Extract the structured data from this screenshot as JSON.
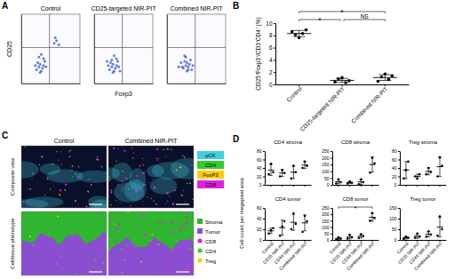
{
  "chart_data": [
    {
      "type": "scatter",
      "title": "Control",
      "x": [
        1.3,
        1.5,
        1.7,
        1.9,
        1.4,
        1.6,
        1.8,
        2.0,
        1.2,
        1.6,
        1.9,
        1.5,
        2.1,
        1.7,
        2.8,
        3.0,
        3.2,
        2.9
      ],
      "values": [
        1.0,
        1.2,
        0.9,
        1.3,
        1.5,
        1.4,
        1.1,
        1.6,
        1.3,
        0.8,
        1.8,
        1.9,
        1.2,
        2.1,
        2.9,
        3.1,
        2.8,
        3.3
      ],
      "xlim": [
        0,
        5
      ],
      "ylim": [
        0,
        5
      ],
      "gates": {
        "x": 2.4,
        "y": 2.6
      },
      "color": "#3050d0",
      "tick_labels": false
    },
    {
      "type": "scatter",
      "title": "CD25-targeted NIR-PIT",
      "x": [
        1.3,
        1.5,
        1.7,
        1.9,
        1.4,
        1.6,
        1.8,
        2.0,
        1.2,
        1.6,
        1.9,
        1.5,
        2.1,
        1.7,
        2.2,
        1.1
      ],
      "values": [
        1.0,
        1.2,
        0.9,
        1.3,
        1.5,
        1.4,
        1.1,
        1.6,
        1.3,
        0.8,
        1.8,
        1.7,
        1.2,
        2.0,
        0.9,
        1.6
      ],
      "xlim": [
        0,
        5
      ],
      "ylim": [
        0,
        5
      ],
      "gates": {
        "x": 2.4,
        "y": 2.6
      },
      "color": "#3050d0",
      "tick_labels": false
    },
    {
      "type": "scatter",
      "title": "Combined NIR-PIT",
      "x": [
        1.4,
        1.6,
        1.8,
        1.5,
        1.3,
        1.7,
        1.9,
        2.0,
        1.2,
        1.6,
        1.8,
        1.5,
        2.1,
        1.7,
        2.2,
        1.0
      ],
      "values": [
        1.1,
        1.3,
        1.0,
        1.6,
        1.2,
        0.9,
        1.4,
        1.7,
        1.5,
        1.9,
        1.2,
        2.0,
        1.0,
        1.5,
        1.3,
        1.2
      ],
      "xlim": [
        0,
        5
      ],
      "ylim": [
        0,
        5
      ],
      "gates": {
        "x": 2.4,
        "y": 2.6
      },
      "color": "#3050d0",
      "tick_labels": false
    },
    {
      "type": "dot",
      "y_label": "CD25⁺Foxp3⁺/CD3⁺CD4⁺ (%)",
      "categories": [
        "Control",
        "CD25-targeted NIR-PIT",
        "Combined NIR-PIT"
      ],
      "values": [
        [
          8.6,
          8.1,
          7.6,
          8.3,
          8.9
        ],
        [
          0.4,
          0.9,
          1.1,
          0.3,
          0.6
        ],
        [
          0.5,
          1.2,
          1.7,
          0.8,
          1.4
        ]
      ],
      "means": [
        8.3,
        0.66,
        1.12
      ],
      "errors": [
        0.5,
        0.33,
        0.47
      ],
      "ylim": [
        0,
        10
      ],
      "yticks": [
        0,
        2,
        4,
        6,
        8,
        10
      ],
      "color": "#000000",
      "annotations": [
        {
          "from": 0,
          "to": 1,
          "label": "*"
        },
        {
          "from": 1,
          "to": 2,
          "label": "NS"
        },
        {
          "from": 0,
          "to": 2,
          "label": "*"
        }
      ]
    },
    {
      "type": "dot",
      "title": "CD4 stroma",
      "categories": [
        "Control",
        "CD25 NIR-PIT",
        "CD44 NIR-PIT",
        "Combined NIR-PIT"
      ],
      "values": [
        [
          25,
          50,
          30
        ],
        [
          20,
          35,
          28
        ],
        [
          15,
          45,
          30
        ],
        [
          40,
          55,
          45
        ]
      ],
      "means": [
        35,
        28,
        30,
        47
      ],
      "errors": [
        13,
        8,
        15,
        8
      ],
      "ylim": [
        0,
        80
      ],
      "yticks": [
        0,
        20,
        40,
        60,
        80
      ],
      "color": "#000000",
      "tick_labels": "y"
    },
    {
      "type": "dot",
      "title": "CD8 stroma",
      "categories": [
        "Control",
        "CD25 NIR-PIT",
        "CD44 NIR-PIT",
        "Combined NIR-PIT"
      ],
      "values": [
        [
          10,
          40,
          20
        ],
        [
          10,
          25,
          15
        ],
        [
          5,
          40,
          20
        ],
        [
          90,
          200,
          160
        ]
      ],
      "means": [
        23,
        17,
        22,
        150
      ],
      "errors": [
        15,
        8,
        18,
        56
      ],
      "ylim": [
        0,
        250
      ],
      "yticks": [
        0,
        50,
        100,
        150,
        200,
        250
      ],
      "color": "#000000",
      "tick_labels": "y"
    },
    {
      "type": "dot",
      "title": "Treg stroma",
      "categories": [
        "Control",
        "CD25 NIR-PIT",
        "CD44 NIR-PIT",
        "Combined NIR-PIT"
      ],
      "values": [
        [
          15,
          35,
          55
        ],
        [
          20,
          15,
          25
        ],
        [
          25,
          40,
          30
        ],
        [
          20,
          65,
          45
        ]
      ],
      "means": [
        35,
        20,
        32,
        43
      ],
      "errors": [
        20,
        5,
        8,
        23
      ],
      "ylim": [
        0,
        80
      ],
      "yticks": [
        0,
        20,
        40,
        60,
        80
      ],
      "color": "#000000",
      "tick_labels": "y"
    },
    {
      "type": "dot",
      "title": "CD4 tumor",
      "categories": [
        "Control",
        "CD25 NIR-PIT",
        "CD44 NIR-PIT",
        "Combined NIR-PIT"
      ],
      "values": [
        [
          12,
          18,
          22
        ],
        [
          8,
          25,
          35
        ],
        [
          20,
          50,
          30
        ],
        [
          15,
          45,
          35
        ]
      ],
      "means": [
        17,
        23,
        33,
        32
      ],
      "errors": [
        5,
        14,
        15,
        15
      ],
      "ylim": [
        0,
        60
      ],
      "yticks": [
        0,
        20,
        40,
        60
      ],
      "color": "#000000"
    },
    {
      "type": "dot",
      "title": "CD8 tumor",
      "categories": [
        "Control",
        "CD25 NIR-PIT",
        "CD44 NIR-PIT",
        "Combined NIR-PIT"
      ],
      "values": [
        [
          5,
          20,
          10
        ],
        [
          10,
          40,
          20
        ],
        [
          15,
          45,
          30
        ],
        [
          150,
          210,
          170
        ]
      ],
      "means": [
        12,
        23,
        30,
        177
      ],
      "errors": [
        8,
        15,
        15,
        31
      ],
      "ylim": [
        0,
        250
      ],
      "yticks": [
        0,
        50,
        100,
        150,
        200,
        250
      ],
      "color": "#000000",
      "annotations": [
        {
          "from": 0,
          "to": 3,
          "label": "*"
        }
      ]
    },
    {
      "type": "dot",
      "title": "Treg tumor",
      "categories": [
        "Control",
        "CD25 NIR-PIT",
        "CD44 NIR-PIT",
        "Combined NIR-PIT"
      ],
      "values": [
        [
          5,
          15,
          10
        ],
        [
          10,
          30,
          15
        ],
        [
          15,
          40,
          25
        ],
        [
          20,
          110,
          50
        ]
      ],
      "means": [
        10,
        18,
        27,
        60
      ],
      "errors": [
        5,
        10,
        13,
        46
      ],
      "ylim": [
        0,
        150
      ],
      "yticks": [
        0,
        50,
        100,
        150
      ],
      "color": "#000000"
    }
  ],
  "panel_labels": [
    "A",
    "B",
    "C",
    "D"
  ],
  "panel_a": {
    "x_label": "Foxp3",
    "y_label": "CD25"
  },
  "panel_d": {
    "y_label": "Cell count per megapixel area"
  },
  "image_panel": {
    "columns": [
      "Control",
      "Combined NIR-PIT"
    ],
    "rows": [
      "Composite view",
      "Cell/tissue phenotype"
    ],
    "legends": [
      [
        {
          "label": "pCK",
          "color": "#3fd0e0"
        },
        {
          "label": "CD4",
          "color": "#33cc33"
        },
        {
          "label": "FoxP3",
          "color": "#ffcc00"
        },
        {
          "label": "CD8",
          "color": "#e020e0"
        }
      ],
      [
        {
          "label": "Stroma",
          "color": "#2fb52f",
          "marker": "square"
        },
        {
          "label": "Tumor",
          "color": "#8a4fd0",
          "marker": "square"
        },
        {
          "label": "CD8",
          "color": "#e020e0",
          "marker": "circle"
        },
        {
          "label": "CD4",
          "color": "#33cc33",
          "marker": "circle"
        },
        {
          "label": "Treg",
          "color": "#ffcc00",
          "marker": "circle"
        }
      ]
    ]
  }
}
